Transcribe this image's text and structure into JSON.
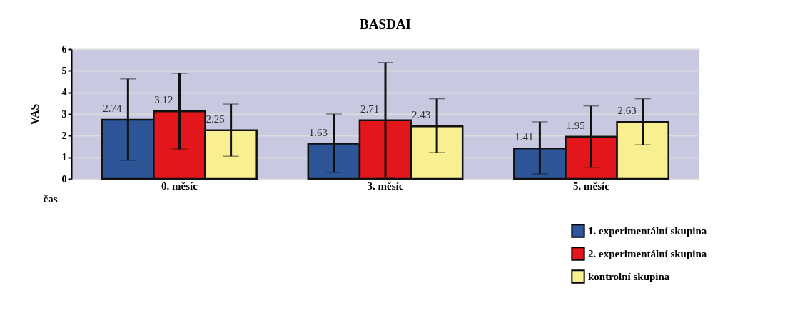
{
  "chart_data": {
    "type": "bar",
    "title": "BASDAI",
    "ylabel": "VAS",
    "xlabel": "čas",
    "categories": [
      "0. měsíc",
      "3. měsíc",
      "5. měsíc"
    ],
    "series": [
      {
        "name": "1. experimentální skupina",
        "color": "#2e5597",
        "values": [
          2.74,
          1.63,
          1.41
        ],
        "errors": [
          [
            0.86,
            4.62
          ],
          [
            0.3,
            3.0
          ],
          [
            0.23,
            2.64
          ]
        ]
      },
      {
        "name": "2. experimentální skupina",
        "color": "#e3161c",
        "values": [
          3.12,
          2.71,
          1.95
        ],
        "errors": [
          [
            1.38,
            4.88
          ],
          [
            0.07,
            5.38
          ],
          [
            0.53,
            3.37
          ]
        ]
      },
      {
        "name": "kontrolní skupina",
        "color": "#f8ef90",
        "values": [
          2.25,
          2.43,
          2.63
        ],
        "errors": [
          [
            1.05,
            3.46
          ],
          [
            1.22,
            3.7
          ],
          [
            1.58,
            3.7
          ]
        ]
      }
    ],
    "ylim": [
      0,
      6
    ],
    "yticks": [
      0,
      1,
      2,
      3,
      4,
      5,
      6
    ],
    "grid": "y",
    "data_labels": true,
    "legend": "bottom right"
  }
}
